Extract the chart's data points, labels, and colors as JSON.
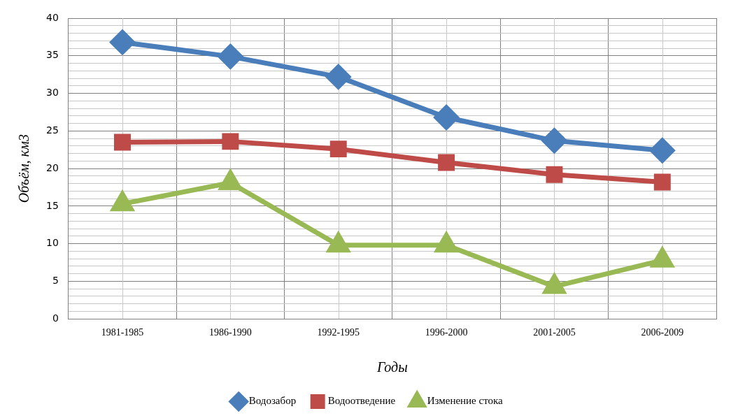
{
  "chart_data": {
    "type": "line",
    "xlabel": "Годы",
    "ylabel": "Объём, км3",
    "categories": [
      "1981-1985",
      "1986-1990",
      "1992-1995",
      "1996-2000",
      "2001-2005",
      "2006-2009"
    ],
    "series": [
      {
        "name": "Водозабор",
        "color": "#4a7ebb",
        "marker": "diamond",
        "values": [
          36.8,
          34.9,
          32.2,
          26.8,
          23.7,
          22.4
        ]
      },
      {
        "name": "Водоотведение",
        "color": "#be4b48",
        "marker": "square",
        "values": [
          23.5,
          23.6,
          22.6,
          20.8,
          19.2,
          18.2
        ]
      },
      {
        "name": "Изменение стока",
        "color": "#98b954",
        "marker": "triangle",
        "values": [
          15.3,
          18.1,
          9.8,
          9.8,
          4.3,
          7.8
        ]
      }
    ],
    "ylim": [
      0,
      40
    ],
    "yticks": [
      0,
      {
        "value": 1,
        "label": null
      },
      {
        "value": 2,
        "label": null
      },
      {
        "value": 3,
        "label": null
      },
      {
        "value": 4,
        "label": null
      },
      5,
      {
        "value": 6,
        "label": null
      },
      {
        "value": 7,
        "label": null
      },
      {
        "value": 8,
        "label": null
      },
      {
        "value": 9,
        "label": null
      },
      10,
      {
        "value": 11,
        "label": null
      },
      {
        "value": 12,
        "label": null
      },
      {
        "value": 13,
        "label": null
      },
      {
        "value": 14,
        "label": null
      },
      15,
      {
        "value": 16,
        "label": null
      },
      {
        "value": 17,
        "label": null
      },
      {
        "value": 18,
        "label": null
      },
      {
        "value": 19,
        "label": null
      },
      20,
      {
        "value": 21,
        "label": null
      },
      {
        "value": 22,
        "label": null
      },
      {
        "value": 23,
        "label": null
      },
      {
        "value": 24,
        "label": null
      },
      25,
      {
        "value": 26,
        "label": null
      },
      {
        "value": 27,
        "label": null
      },
      {
        "value": 28,
        "label": null
      },
      {
        "value": 29,
        "label": null
      },
      30,
      {
        "value": 31,
        "label": null
      },
      {
        "value": 32,
        "label": null
      },
      {
        "value": 33,
        "label": null
      },
      {
        "value": 34,
        "label": null
      },
      35,
      {
        "value": 36,
        "label": null
      },
      {
        "value": 37,
        "label": null
      },
      {
        "value": 38,
        "label": null
      },
      {
        "value": 39,
        "label": null
      },
      40
    ],
    "grid": true,
    "legend": "bottom",
    "line_style": "solid"
  }
}
